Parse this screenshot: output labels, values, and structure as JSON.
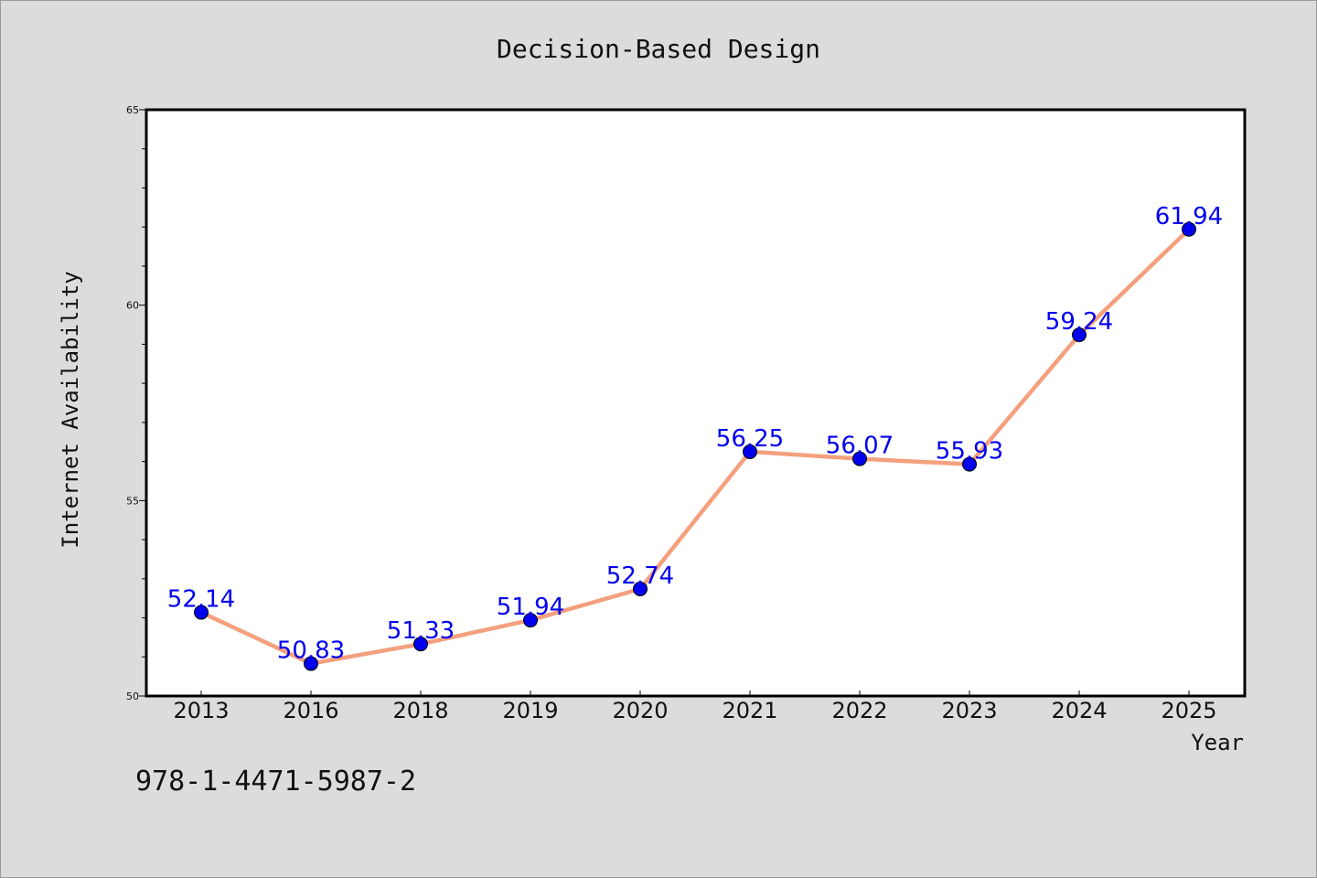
{
  "chart_data": {
    "type": "line",
    "title": "Decision-Based Design",
    "xlabel": "Year",
    "ylabel": "Internet Availability",
    "categories": [
      "2013",
      "2016",
      "2018",
      "2019",
      "2020",
      "2021",
      "2022",
      "2023",
      "2024",
      "2025"
    ],
    "series": [
      {
        "values": [
          52.14,
          50.83,
          51.33,
          51.94,
          52.74,
          56.25,
          56.07,
          55.93,
          59.24,
          61.94
        ],
        "line_color": "#f4a07e",
        "marker_color": "#0000ee",
        "label_color": "#0000ee"
      }
    ],
    "data_labels": [
      "52.14",
      "50.83",
      "51.33",
      "51.94",
      "52.74",
      "56.25",
      "56.07",
      "55.93",
      "59.24",
      "61.94"
    ],
    "ylim": [
      50,
      65
    ],
    "y_tick_labels": [
      "50",
      "55",
      "60",
      "65"
    ],
    "grid": false,
    "legend": "none"
  },
  "annotation": "978-1-4471-5987-2",
  "colors": {
    "background": "#dcdcdc",
    "plot_background": "#ffffff",
    "axis": "#000000",
    "text": "#111111"
  }
}
